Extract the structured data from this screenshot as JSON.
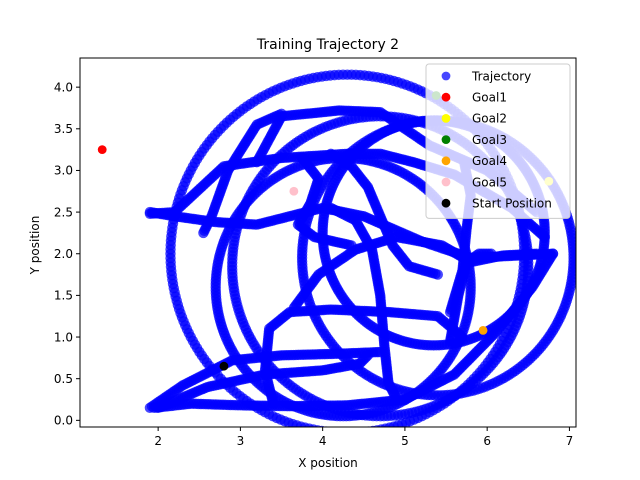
{
  "chart_data": {
    "type": "scatter",
    "title": "Training Trajectory 2",
    "xlabel": "X position",
    "ylabel": "Y position",
    "xlim": [
      1.05,
      7.08
    ],
    "ylim": [
      -0.08,
      4.35
    ],
    "xticks": [
      2,
      3,
      4,
      5,
      6,
      7
    ],
    "yticks": [
      0.0,
      0.5,
      1.0,
      1.5,
      2.0,
      2.5,
      3.0,
      3.5,
      4.0
    ],
    "xtick_labels": [
      "2",
      "3",
      "4",
      "5",
      "6",
      "7"
    ],
    "ytick_labels": [
      "0.0",
      "0.5",
      "1.0",
      "1.5",
      "2.0",
      "2.5",
      "3.0",
      "3.5",
      "4.0"
    ],
    "grid": false,
    "legend_position": "top-right",
    "trajectory": {
      "name": "Trajectory",
      "color": "#0000ff",
      "marker": "circle",
      "paths": [
        {
          "type": "circle",
          "cx": 4.3,
          "cy": 2.0,
          "r": 2.15
        },
        {
          "type": "circle",
          "cx": 4.7,
          "cy": 1.85,
          "r": 1.8
        },
        {
          "type": "circle",
          "cx": 5.35,
          "cy": 2.25,
          "r": 1.35
        },
        {
          "type": "circle",
          "cx": 5.4,
          "cy": 1.95,
          "r": 1.65
        },
        {
          "type": "circle",
          "cx": 4.25,
          "cy": 1.6,
          "r": 1.55
        },
        {
          "type": "polyline",
          "points": [
            [
              1.9,
              2.48
            ],
            [
              2.2,
              2.5
            ],
            [
              2.8,
              3.05
            ],
            [
              3.5,
              3.15
            ],
            [
              4.3,
              3.2
            ],
            [
              4.7,
              3.2
            ],
            [
              5.1,
              3.1
            ],
            [
              5.6,
              2.95
            ],
            [
              6.3,
              2.55
            ],
            [
              6.7,
              2.2
            ]
          ]
        },
        {
          "type": "polyline",
          "points": [
            [
              1.9,
              2.5
            ],
            [
              2.2,
              2.45
            ],
            [
              2.7,
              2.38
            ],
            [
              3.2,
              2.35
            ],
            [
              3.6,
              2.45
            ],
            [
              4.0,
              2.55
            ],
            [
              4.5,
              2.45
            ],
            [
              5.2,
              2.15
            ],
            [
              5.8,
              1.95
            ],
            [
              6.4,
              1.98
            ],
            [
              6.8,
              2.0
            ]
          ]
        },
        {
          "type": "polyline",
          "points": [
            [
              3.2,
              3.1
            ],
            [
              3.5,
              3.65
            ],
            [
              4.2,
              3.72
            ],
            [
              4.7,
              3.7
            ],
            [
              5.3,
              3.3
            ],
            [
              6.0,
              3.0
            ],
            [
              6.6,
              2.5
            ]
          ]
        },
        {
          "type": "polyline",
          "points": [
            [
              2.55,
              2.25
            ],
            [
              2.65,
              2.45
            ],
            [
              2.85,
              3.0
            ],
            [
              3.2,
              3.55
            ],
            [
              3.5,
              3.68
            ]
          ]
        },
        {
          "type": "polyline",
          "points": [
            [
              1.9,
              0.15
            ],
            [
              2.3,
              0.42
            ],
            [
              2.9,
              0.72
            ],
            [
              3.5,
              0.78
            ],
            [
              4.2,
              0.8
            ],
            [
              4.7,
              0.82
            ]
          ]
        },
        {
          "type": "polyline",
          "points": [
            [
              1.95,
              0.15
            ],
            [
              2.4,
              0.2
            ],
            [
              3.0,
              0.18
            ],
            [
              3.6,
              0.17
            ],
            [
              4.3,
              0.18
            ],
            [
              5.0,
              0.25
            ],
            [
              5.6,
              0.55
            ],
            [
              6.1,
              1.05
            ],
            [
              6.55,
              1.6
            ],
            [
              6.8,
              2.0
            ]
          ]
        },
        {
          "type": "polyline",
          "points": [
            [
              2.0,
              0.15
            ],
            [
              2.6,
              0.4
            ],
            [
              3.3,
              0.55
            ],
            [
              4.0,
              0.6
            ],
            [
              4.45,
              0.68
            ],
            [
              4.55,
              0.78
            ]
          ]
        },
        {
          "type": "polyline",
          "points": [
            [
              3.4,
              0.2
            ],
            [
              3.3,
              0.6
            ],
            [
              3.35,
              1.1
            ],
            [
              3.6,
              1.3
            ],
            [
              4.1,
              1.33
            ],
            [
              4.8,
              1.3
            ],
            [
              5.4,
              1.25
            ],
            [
              5.7,
              1.0
            ]
          ]
        },
        {
          "type": "polyline",
          "points": [
            [
              3.65,
              1.35
            ],
            [
              3.95,
              1.75
            ],
            [
              4.4,
              2.05
            ],
            [
              4.9,
              2.2
            ],
            [
              5.45,
              2.1
            ],
            [
              5.8,
              1.9
            ],
            [
              6.2,
              1.98
            ],
            [
              6.6,
              2.0
            ]
          ]
        },
        {
          "type": "polyline",
          "points": [
            [
              4.1,
              2.55
            ],
            [
              4.4,
              2.4
            ],
            [
              4.6,
              2.05
            ],
            [
              4.7,
              1.5
            ],
            [
              4.75,
              0.9
            ],
            [
              4.8,
              0.45
            ],
            [
              4.9,
              0.25
            ]
          ]
        },
        {
          "type": "polyline",
          "points": [
            [
              3.75,
              3.15
            ],
            [
              3.95,
              2.9
            ],
            [
              3.85,
              2.6
            ],
            [
              3.7,
              2.35
            ],
            [
              3.9,
              2.2
            ],
            [
              4.35,
              2.1
            ]
          ]
        },
        {
          "type": "polyline",
          "points": [
            [
              5.55,
              1.3
            ],
            [
              5.7,
              1.8
            ],
            [
              5.75,
              2.3
            ],
            [
              5.8,
              2.7
            ],
            [
              5.72,
              3.1
            ]
          ]
        },
        {
          "type": "polyline",
          "points": [
            [
              5.55,
              0.95
            ],
            [
              5.65,
              1.5
            ],
            [
              5.75,
              1.9
            ],
            [
              5.9,
              2.0
            ],
            [
              6.05,
              2.0
            ]
          ]
        },
        {
          "type": "polyline",
          "points": [
            [
              4.1,
              3.2
            ],
            [
              4.35,
              3.05
            ],
            [
              4.55,
              2.8
            ],
            [
              4.7,
              2.45
            ],
            [
              4.85,
              2.1
            ],
            [
              5.05,
              1.85
            ],
            [
              5.4,
              1.75
            ]
          ]
        }
      ]
    },
    "goals": [
      {
        "name": "Goal1",
        "color": "#ff0000",
        "x": 1.32,
        "y": 3.25
      },
      {
        "name": "Goal2",
        "color": "#ffff00",
        "x": 6.75,
        "y": 2.87
      },
      {
        "name": "Goal3",
        "color": "#008000",
        "x": 5.38,
        "y": 3.9
      },
      {
        "name": "Goal4",
        "color": "#ffa500",
        "x": 5.95,
        "y": 1.08
      },
      {
        "name": "Goal5",
        "color": "#ffc0cb",
        "x": 3.65,
        "y": 2.75
      },
      {
        "name": "Start Position",
        "color": "#000000",
        "x": 2.8,
        "y": 0.65
      }
    ],
    "legend": [
      {
        "label": "Trajectory",
        "color": "#0000ff"
      },
      {
        "label": "Goal1",
        "color": "#ff0000"
      },
      {
        "label": "Goal2",
        "color": "#ffff00"
      },
      {
        "label": "Goal3",
        "color": "#008000"
      },
      {
        "label": "Goal4",
        "color": "#ffa500"
      },
      {
        "label": "Goal5",
        "color": "#ffc0cb"
      },
      {
        "label": "Start Position",
        "color": "#000000"
      }
    ]
  }
}
